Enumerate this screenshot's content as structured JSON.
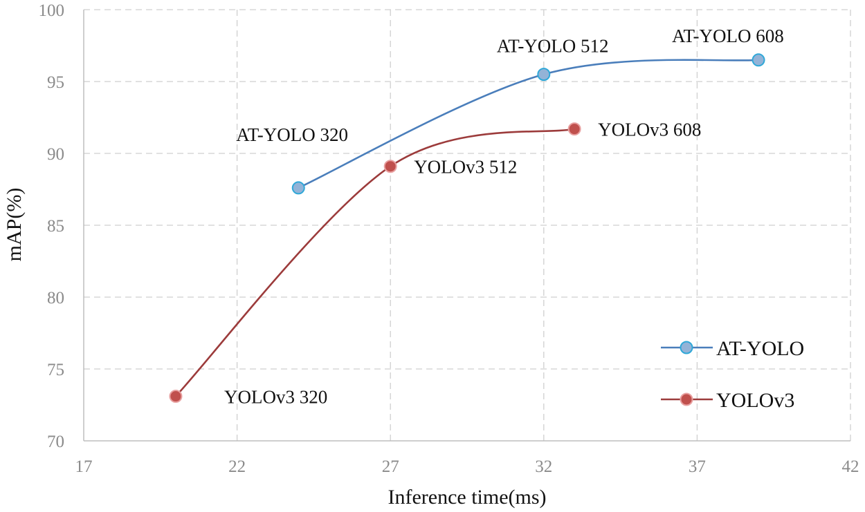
{
  "chart_data": {
    "type": "line",
    "title": "",
    "xlabel": "Inference time(ms)",
    "ylabel": "mAP(%)",
    "xlim": [
      17,
      42
    ],
    "ylim": [
      70,
      100
    ],
    "xticks": [
      "17",
      "22",
      "27",
      "32",
      "37",
      "42"
    ],
    "yticks": [
      "70",
      "75",
      "80",
      "85",
      "90",
      "95",
      "100"
    ],
    "grid": true,
    "legend_position": "bottom-right",
    "series": [
      {
        "name": "AT-YOLO",
        "color": "#4a7ebb",
        "marker_color": "#93b3d7",
        "marker_edge": "#2fa8d8",
        "points": [
          {
            "x": 24,
            "y": 87.6,
            "label": "AT-YOLO 320"
          },
          {
            "x": 32,
            "y": 95.5,
            "label": "AT-YOLO 512"
          },
          {
            "x": 39,
            "y": 96.5,
            "label": "AT-YOLO 608"
          }
        ]
      },
      {
        "name": "YOLOv3",
        "color": "#9c3b3b",
        "marker_color": "#c0504d",
        "marker_edge": "#e8a0a0",
        "points": [
          {
            "x": 20,
            "y": 73.1,
            "label": "YOLOv3 320"
          },
          {
            "x": 27,
            "y": 89.1,
            "label": "YOLOv3 512"
          },
          {
            "x": 33,
            "y": 91.7,
            "label": "YOLOv3 608"
          }
        ]
      }
    ]
  }
}
